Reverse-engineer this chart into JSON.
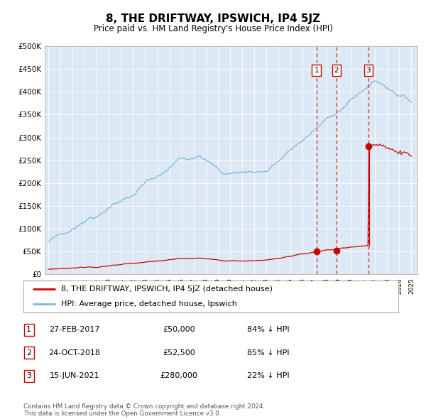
{
  "title": "8, THE DRIFTWAY, IPSWICH, IP4 5JZ",
  "subtitle": "Price paid vs. HM Land Registry's House Price Index (HPI)",
  "plot_bg_color": "#dce9f5",
  "hpi_color": "#7ab8d9",
  "price_color": "#cc0000",
  "vline_color": "#cc0000",
  "ylim": [
    0,
    500000
  ],
  "yticks": [
    0,
    50000,
    100000,
    150000,
    200000,
    250000,
    300000,
    350000,
    400000,
    450000,
    500000
  ],
  "xlim": [
    1994.7,
    2025.5
  ],
  "sale_dates_num": [
    2017.15,
    2018.81,
    2021.45
  ],
  "sale_prices": [
    50000,
    52500,
    280000
  ],
  "sale_labels": [
    "1",
    "2",
    "3"
  ],
  "legend_price_label": "8, THE DRIFTWAY, IPSWICH, IP4 5JZ (detached house)",
  "legend_hpi_label": "HPI: Average price, detached house, Ipswich",
  "table_data": [
    [
      "1",
      "27-FEB-2017",
      "£50,000",
      "84% ↓ HPI"
    ],
    [
      "2",
      "24-OCT-2018",
      "£52,500",
      "85% ↓ HPI"
    ],
    [
      "3",
      "15-JUN-2021",
      "£280,000",
      "22% ↓ HPI"
    ]
  ],
  "footer": "Contains HM Land Registry data © Crown copyright and database right 2024.\nThis data is licensed under the Open Government Licence v3.0."
}
